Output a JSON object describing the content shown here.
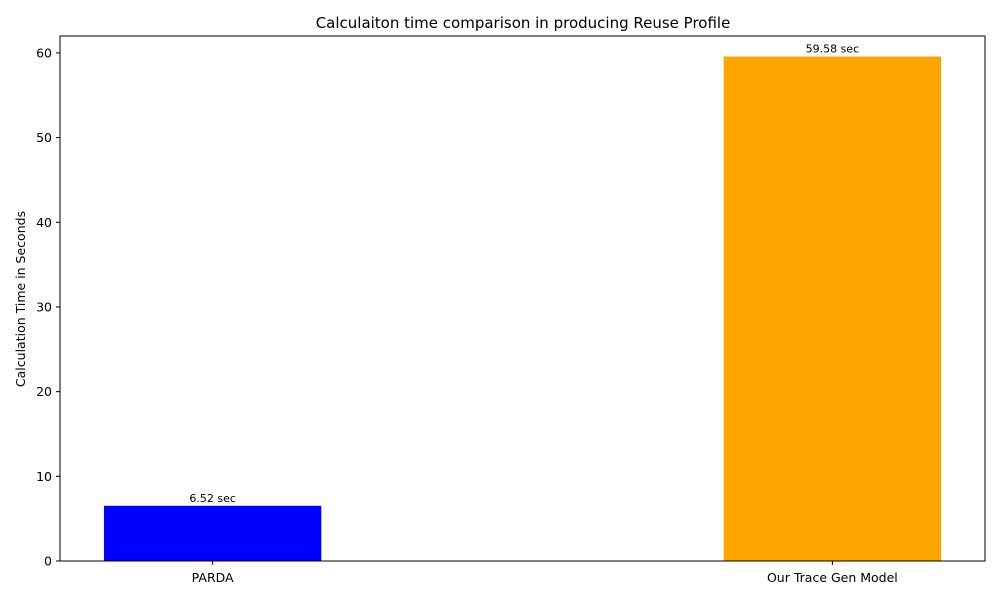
{
  "chart_data": {
    "type": "bar",
    "title": "Calculaiton time comparison in producing Reuse Profile",
    "xlabel": "",
    "ylabel": "Calculation Time in Seconds",
    "categories": [
      "PARDA",
      "Our Trace Gen Model"
    ],
    "values": [
      6.52,
      59.58
    ],
    "data_labels": [
      "6.52 sec",
      "59.58 sec"
    ],
    "colors": [
      "#0000ff",
      "#ffa500"
    ],
    "ylim": [
      0,
      62
    ],
    "yticks": [
      0,
      10,
      20,
      30,
      40,
      50,
      60
    ],
    "grid": false,
    "legend": "none"
  }
}
